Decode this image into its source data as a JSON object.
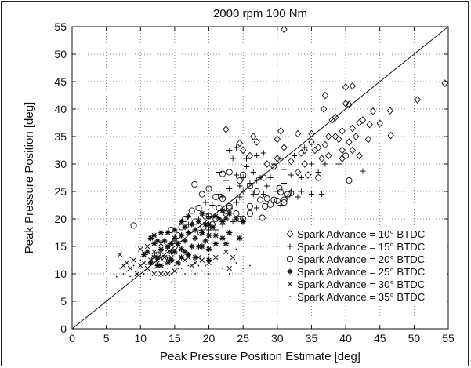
{
  "chart_data": {
    "type": "scatter",
    "title": "2000 rpm  100 Nm",
    "xlabel": "Peak Pressure Position Estimate [deg]",
    "ylabel": "Peak Pressure Position [deg]",
    "xlim": [
      0,
      55
    ],
    "ylim": [
      0,
      55
    ],
    "xticks": [
      0,
      5,
      10,
      15,
      20,
      25,
      30,
      35,
      40,
      45,
      50,
      55
    ],
    "yticks": [
      0,
      5,
      10,
      15,
      20,
      25,
      30,
      35,
      40,
      45,
      50,
      55
    ],
    "grid": true,
    "legend_position": "bottom-right",
    "reference_line": {
      "from": [
        0,
        0
      ],
      "to": [
        55,
        55
      ]
    },
    "series": [
      {
        "name": "Spark Advance = 10° BTDC",
        "marker": "diamond",
        "points": [
          [
            31,
            54.5
          ],
          [
            54.5,
            44.7
          ],
          [
            50.5,
            41.7
          ],
          [
            46.5,
            39.7
          ],
          [
            44,
            39.6
          ],
          [
            43.5,
            37.2
          ],
          [
            45,
            37.4
          ],
          [
            46.6,
            35.2
          ],
          [
            42,
            37.5
          ],
          [
            41,
            36.5
          ],
          [
            39.5,
            36
          ],
          [
            40,
            44
          ],
          [
            41,
            44.2
          ],
          [
            40,
            41
          ],
          [
            40.5,
            40.8
          ],
          [
            37,
            42.5
          ],
          [
            36.8,
            40
          ],
          [
            38,
            38
          ],
          [
            38.5,
            35
          ],
          [
            39,
            34.5
          ],
          [
            39.5,
            32.5
          ],
          [
            40.5,
            34
          ],
          [
            41.5,
            35
          ],
          [
            42.5,
            38
          ],
          [
            38.5,
            38.5
          ],
          [
            37.5,
            35
          ],
          [
            36,
            33
          ],
          [
            35,
            34
          ],
          [
            34,
            32.5
          ],
          [
            33,
            35.5
          ],
          [
            33.5,
            32
          ],
          [
            30.5,
            36
          ],
          [
            30,
            34.5
          ],
          [
            26.5,
            35
          ],
          [
            27,
            34
          ],
          [
            22.5,
            36.3
          ],
          [
            24.5,
            33.8
          ],
          [
            28.5,
            30
          ],
          [
            30,
            31
          ],
          [
            25,
            32.5
          ],
          [
            26,
            31.5
          ],
          [
            37,
            33.5
          ],
          [
            36.5,
            31
          ],
          [
            35.5,
            32.5
          ],
          [
            34,
            30
          ],
          [
            29.5,
            29.5
          ],
          [
            31,
            33
          ],
          [
            32,
            30.5
          ],
          [
            35,
            35.5
          ],
          [
            37.5,
            31.5
          ],
          [
            39.5,
            31
          ],
          [
            41,
            32.5
          ],
          [
            42,
            31.5
          ],
          [
            43.3,
            34.5
          ],
          [
            33,
            28.5
          ],
          [
            34.5,
            28
          ]
        ]
      },
      {
        "name": "Spark Advance = 15° BTDC",
        "marker": "plus",
        "points": [
          [
            23,
            32.5
          ],
          [
            24,
            33
          ],
          [
            25.5,
            31
          ],
          [
            27,
            31.5
          ],
          [
            28,
            32
          ],
          [
            29.5,
            30
          ],
          [
            30.5,
            31
          ],
          [
            31,
            29
          ],
          [
            32,
            28
          ],
          [
            33.5,
            27.5
          ],
          [
            35,
            30
          ],
          [
            36,
            28.5
          ],
          [
            37,
            30
          ],
          [
            39,
            30
          ],
          [
            42.5,
            28.7
          ],
          [
            32.5,
            31.5
          ],
          [
            34,
            33
          ],
          [
            25.5,
            29.5
          ],
          [
            26.5,
            28.5
          ],
          [
            27,
            27
          ],
          [
            25,
            27.5
          ],
          [
            24.5,
            26
          ],
          [
            23,
            25.5
          ],
          [
            22,
            24
          ],
          [
            24,
            23
          ],
          [
            21.5,
            24.5
          ],
          [
            22.5,
            21
          ],
          [
            23.5,
            19.5
          ],
          [
            20,
            20.5
          ],
          [
            21,
            18
          ],
          [
            22,
            19
          ],
          [
            19,
            17.5
          ],
          [
            20,
            18
          ],
          [
            27.5,
            27.5
          ],
          [
            28.5,
            26
          ],
          [
            29,
            27.5
          ],
          [
            30,
            25
          ],
          [
            31,
            26.5
          ],
          [
            32,
            25
          ],
          [
            33,
            24
          ],
          [
            26.5,
            24.5
          ],
          [
            28,
            24.5
          ],
          [
            29.5,
            23
          ],
          [
            30.5,
            22.5
          ],
          [
            31.5,
            24
          ],
          [
            33.5,
            25
          ],
          [
            35,
            24.5
          ],
          [
            36.5,
            24.5
          ],
          [
            24,
            28
          ],
          [
            23.5,
            31
          ],
          [
            21.5,
            28.5
          ],
          [
            22.5,
            27
          ],
          [
            20.5,
            22.5
          ],
          [
            18.5,
            20
          ],
          [
            17,
            19
          ],
          [
            16,
            17
          ],
          [
            15,
            16
          ],
          [
            14,
            13
          ],
          [
            26,
            26.5
          ],
          [
            25,
            25
          ],
          [
            24.5,
            24
          ],
          [
            27,
            22
          ],
          [
            19.5,
            23
          ]
        ]
      },
      {
        "name": "Spark Advance = 20° BTDC",
        "marker": "circle",
        "points": [
          [
            9,
            18.8
          ],
          [
            17.9,
            26.3
          ],
          [
            19,
            24.5
          ],
          [
            20,
            25.5
          ],
          [
            21,
            24
          ],
          [
            22,
            28.2
          ],
          [
            23,
            28.5
          ],
          [
            24.5,
            27
          ],
          [
            25,
            28
          ],
          [
            26,
            26
          ],
          [
            27,
            25
          ],
          [
            28,
            27.5
          ],
          [
            30.3,
            25.6
          ],
          [
            27.5,
            23.5
          ],
          [
            28.5,
            23.7
          ],
          [
            29.5,
            23.5
          ],
          [
            30,
            23.3
          ],
          [
            31,
            23.5
          ],
          [
            29,
            22.6
          ],
          [
            28.2,
            22.3
          ],
          [
            27.8,
            20.2
          ],
          [
            30.5,
            24.9
          ],
          [
            31,
            23
          ],
          [
            31.5,
            24.5
          ],
          [
            22,
            23.7
          ],
          [
            23,
            22.3
          ],
          [
            22.5,
            21
          ],
          [
            21,
            20
          ],
          [
            19.5,
            20.5
          ],
          [
            18.5,
            22
          ],
          [
            20,
            20.5
          ],
          [
            19.2,
            18.5
          ],
          [
            18,
            19.5
          ],
          [
            20.5,
            19
          ],
          [
            17.5,
            21.5
          ],
          [
            16.5,
            20
          ],
          [
            16,
            18.5
          ],
          [
            15.5,
            17
          ],
          [
            14.5,
            18
          ],
          [
            18.8,
            17.5
          ],
          [
            12,
            12.8
          ],
          [
            12.5,
            13.5
          ],
          [
            13.5,
            12.8
          ],
          [
            15,
            15
          ],
          [
            24,
            21
          ],
          [
            25,
            20
          ],
          [
            26,
            21
          ],
          [
            24.5,
            20
          ],
          [
            23,
            22
          ],
          [
            21.5,
            22
          ],
          [
            40.5,
            27
          ],
          [
            40,
            31.5
          ],
          [
            36,
            27.5
          ],
          [
            26,
            22.3
          ],
          [
            32,
            24.7
          ]
        ]
      },
      {
        "name": "Spark Advance = 25° BTDC",
        "marker": "asterisk",
        "points": [
          [
            10.5,
            13.5
          ],
          [
            11,
            14
          ],
          [
            11.5,
            12
          ],
          [
            12,
            15.5
          ],
          [
            12.5,
            16
          ],
          [
            13,
            17.5
          ],
          [
            13.5,
            16
          ],
          [
            14,
            15
          ],
          [
            14.5,
            14
          ],
          [
            14,
            17.5
          ],
          [
            15,
            16.5
          ],
          [
            15.5,
            15.5
          ],
          [
            15,
            18
          ],
          [
            16,
            17
          ],
          [
            16.5,
            16
          ],
          [
            16,
            19.5
          ],
          [
            16.5,
            18.5
          ],
          [
            17,
            17.5
          ],
          [
            17,
            20.5
          ],
          [
            17.5,
            19
          ],
          [
            18,
            18
          ],
          [
            18,
            16.5
          ],
          [
            18.5,
            19.5
          ],
          [
            19,
            21
          ],
          [
            19,
            17.5
          ],
          [
            19.5,
            19
          ],
          [
            20,
            19
          ],
          [
            20,
            17
          ],
          [
            20.5,
            18.5
          ],
          [
            21,
            20.5
          ],
          [
            21.5,
            20
          ],
          [
            22,
            19.5
          ],
          [
            22,
            21.5
          ],
          [
            22.5,
            20
          ],
          [
            23,
            21
          ],
          [
            24,
            20
          ],
          [
            25,
            19.5
          ],
          [
            13,
            14.5
          ],
          [
            12,
            17
          ],
          [
            11.5,
            16.5
          ],
          [
            12.5,
            11.5
          ],
          [
            14.5,
            12.5
          ],
          [
            15,
            14
          ],
          [
            16,
            14.5
          ],
          [
            17.5,
            15
          ],
          [
            18.5,
            15
          ],
          [
            19.5,
            16
          ],
          [
            21,
            15.5
          ],
          [
            20,
            14.5
          ],
          [
            17,
            13.5
          ],
          [
            16,
            13
          ],
          [
            15.5,
            12
          ],
          [
            13,
            11.5
          ],
          [
            12.5,
            13
          ],
          [
            14,
            12
          ],
          [
            23,
            17.5
          ],
          [
            22,
            16.5
          ],
          [
            21,
            17
          ],
          [
            24.5,
            16.5
          ],
          [
            22.5,
            15.5
          ],
          [
            20,
            12.5
          ],
          [
            18,
            13
          ],
          [
            19,
            15
          ],
          [
            16.5,
            14
          ],
          [
            14.5,
            15.5
          ]
        ]
      },
      {
        "name": "Spark Advance = 30° BTDC",
        "marker": "x",
        "points": [
          [
            7,
            13.5
          ],
          [
            7.5,
            11.5
          ],
          [
            8,
            12
          ],
          [
            8.5,
            11
          ],
          [
            9,
            12.5
          ],
          [
            9.5,
            10
          ],
          [
            10,
            11.5
          ],
          [
            10.5,
            12
          ],
          [
            11,
            11
          ],
          [
            11.5,
            12.5
          ],
          [
            12,
            13
          ],
          [
            12.5,
            12
          ],
          [
            13,
            14
          ],
          [
            13.5,
            13
          ],
          [
            14,
            14.5
          ],
          [
            14.5,
            13
          ],
          [
            15,
            14
          ],
          [
            15.5,
            12
          ],
          [
            16,
            13
          ],
          [
            16.5,
            12.5
          ],
          [
            17,
            13
          ],
          [
            17.5,
            11.5
          ],
          [
            18,
            12
          ],
          [
            18.5,
            13
          ],
          [
            19,
            12.5
          ],
          [
            20,
            12
          ],
          [
            10,
            14.5
          ],
          [
            11,
            15
          ],
          [
            13,
            15.5
          ],
          [
            12,
            14
          ],
          [
            22.5,
            14
          ],
          [
            23.5,
            13
          ],
          [
            21,
            13
          ],
          [
            15,
            10.5
          ],
          [
            14,
            10
          ],
          [
            13,
            10
          ],
          [
            12,
            10
          ],
          [
            23,
            11
          ]
        ]
      },
      {
        "name": "Spark Advance = 35° BTDC",
        "marker": "dot",
        "points": [
          [
            7,
            11
          ],
          [
            7.5,
            10
          ],
          [
            8,
            10.5
          ],
          [
            8.5,
            9.5
          ],
          [
            9,
            11.5
          ],
          [
            9.5,
            10.5
          ],
          [
            10,
            9.5
          ],
          [
            10.5,
            10
          ],
          [
            11,
            10.5
          ],
          [
            11.5,
            9
          ],
          [
            12,
            11
          ],
          [
            12.5,
            10.5
          ],
          [
            13,
            9.5
          ],
          [
            13.5,
            10
          ],
          [
            14,
            11
          ],
          [
            14.5,
            10
          ],
          [
            15,
            11.5
          ],
          [
            15.5,
            11
          ],
          [
            16,
            11
          ],
          [
            16.5,
            10
          ],
          [
            17,
            11.5
          ],
          [
            17.5,
            10.5
          ],
          [
            18,
            10
          ],
          [
            18.5,
            11.5
          ],
          [
            19,
            10.5
          ],
          [
            19.5,
            11.5
          ],
          [
            20,
            10
          ],
          [
            21,
            10.5
          ],
          [
            22,
            11
          ],
          [
            23,
            10
          ],
          [
            24,
            12
          ],
          [
            25,
            11
          ],
          [
            26,
            11.5
          ],
          [
            6.5,
            9.5
          ],
          [
            8.5,
            13
          ],
          [
            10,
            12.5
          ],
          [
            20,
            13.5
          ],
          [
            24,
            14.5
          ],
          [
            14.5,
            8.5
          ]
        ]
      }
    ]
  }
}
